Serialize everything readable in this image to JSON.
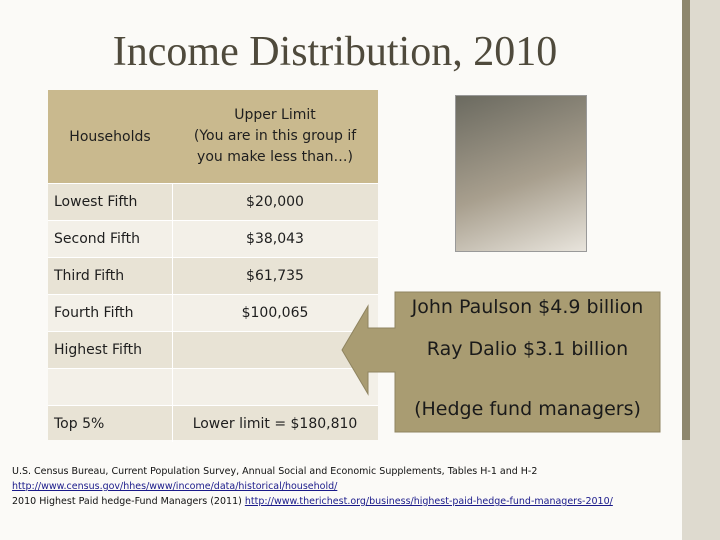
{
  "title": "Income Distribution, 2010",
  "table": {
    "header": {
      "households": "Households",
      "limit_lines": [
        "Upper Limit",
        "(You are in this group if",
        "you make less than…)"
      ]
    },
    "rows": [
      [
        "Lowest Fifth",
        "$20,000"
      ],
      [
        "Second Fifth",
        "$38,043"
      ],
      [
        "Third Fifth",
        "$61,735"
      ],
      [
        "Fourth Fifth",
        "$100,065"
      ],
      [
        "Highest Fifth"
      ],
      [
        "Top 5%",
        "Lower limit = $180,810"
      ]
    ]
  },
  "callout": {
    "lines": [
      "John Paulson $4.9 billion",
      "Ray Dalio $3.1 billion",
      "(Hedge fund managers)"
    ]
  },
  "footer": {
    "source1": "U.S. Census Bureau, Current Population Survey, Annual Social and Economic Supplements, Tables H-1 and H-2",
    "link1": "http://www.census.gov/hhes/www/income/data/historical/household/",
    "source2": "2010 Highest Paid hedge-Fund Managers (2011)",
    "link2": "http://www.therichest.org/business/highest-paid-hedge-fund-managers-2010/"
  }
}
